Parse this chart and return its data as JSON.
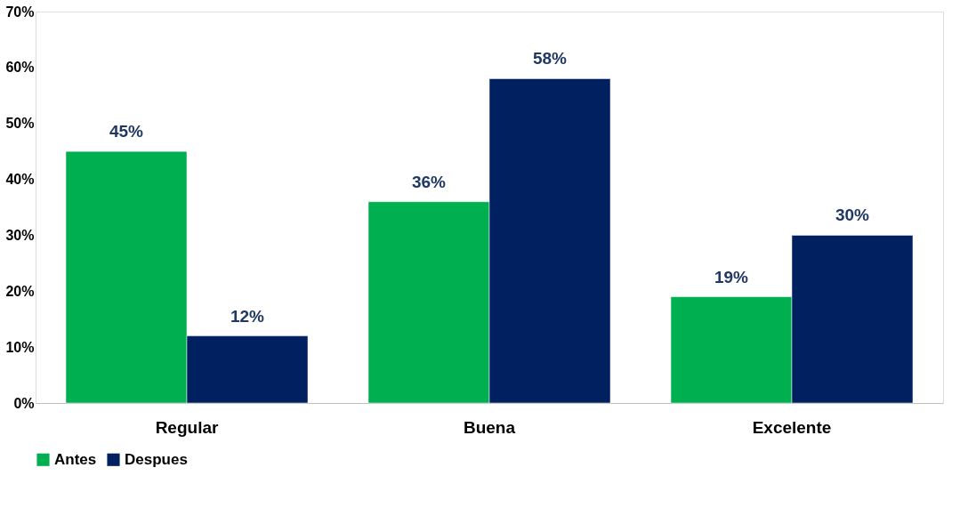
{
  "chart_data": {
    "type": "bar",
    "categories": [
      "Regular",
      "Buena",
      "Excelente"
    ],
    "series": [
      {
        "name": "Antes",
        "color": "#00b050",
        "values": [
          45,
          36,
          19
        ],
        "value_labels": [
          "45%",
          "36%",
          "19%"
        ]
      },
      {
        "name": "Despues",
        "color": "#002060",
        "values": [
          12,
          58,
          30
        ],
        "value_labels": [
          "12%",
          "58%",
          "30%"
        ]
      }
    ],
    "ylim": [
      0,
      70
    ],
    "yticks": [
      {
        "value": 0,
        "label": "0%"
      },
      {
        "value": 10,
        "label": "10%"
      },
      {
        "value": 20,
        "label": "20%"
      },
      {
        "value": 30,
        "label": "30%"
      },
      {
        "value": 40,
        "label": "40%"
      },
      {
        "value": 50,
        "label": "50%"
      },
      {
        "value": 60,
        "label": "60%"
      },
      {
        "value": 70,
        "label": "70%"
      }
    ],
    "grid": false,
    "legend": "bottom"
  }
}
